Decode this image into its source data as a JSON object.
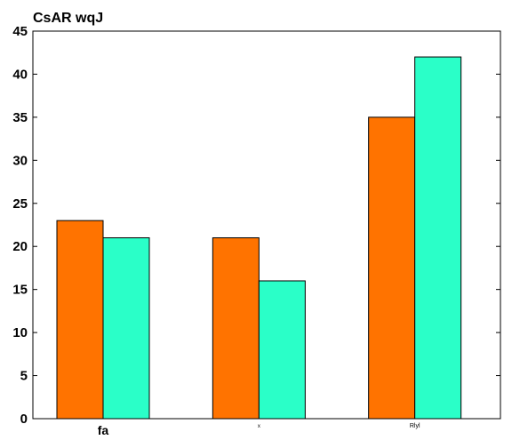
{
  "chart_data": {
    "type": "bar",
    "title": "CsAR wqJ",
    "xlabel": "",
    "ylabel": "",
    "categories": [
      "fa",
      "x",
      "Rlyl"
    ],
    "series": [
      {
        "values": [
          23,
          21,
          35
        ],
        "color": "#ff7300"
      },
      {
        "values": [
          21,
          16,
          42
        ],
        "color": "#2affc8"
      }
    ],
    "ylim": [
      0,
      45
    ],
    "yticks": [
      0,
      5,
      10,
      15,
      20,
      25,
      30,
      35,
      40,
      45
    ],
    "grid": false,
    "legend": "none"
  }
}
